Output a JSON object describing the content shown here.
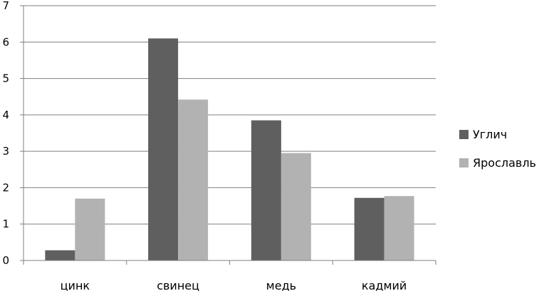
{
  "chart_data": {
    "type": "bar",
    "categories": [
      "цинк",
      "свинец",
      "медь",
      "кадмий"
    ],
    "series": [
      {
        "name": "Углич",
        "values": [
          0.28,
          6.1,
          3.85,
          1.72
        ],
        "color": "#5f5f5f"
      },
      {
        "name": "Ярославль",
        "values": [
          1.7,
          4.42,
          2.95,
          1.77
        ],
        "color": "#b2b2b2"
      }
    ],
    "ylim": [
      0,
      7
    ],
    "yticks": [
      "0",
      "1",
      "2",
      "3",
      "4",
      "5",
      "6",
      "7"
    ],
    "grid": true,
    "legend_position": "right",
    "colors": {
      "gridline": "#7f7f7f",
      "axis": "#7f7f7f"
    }
  }
}
